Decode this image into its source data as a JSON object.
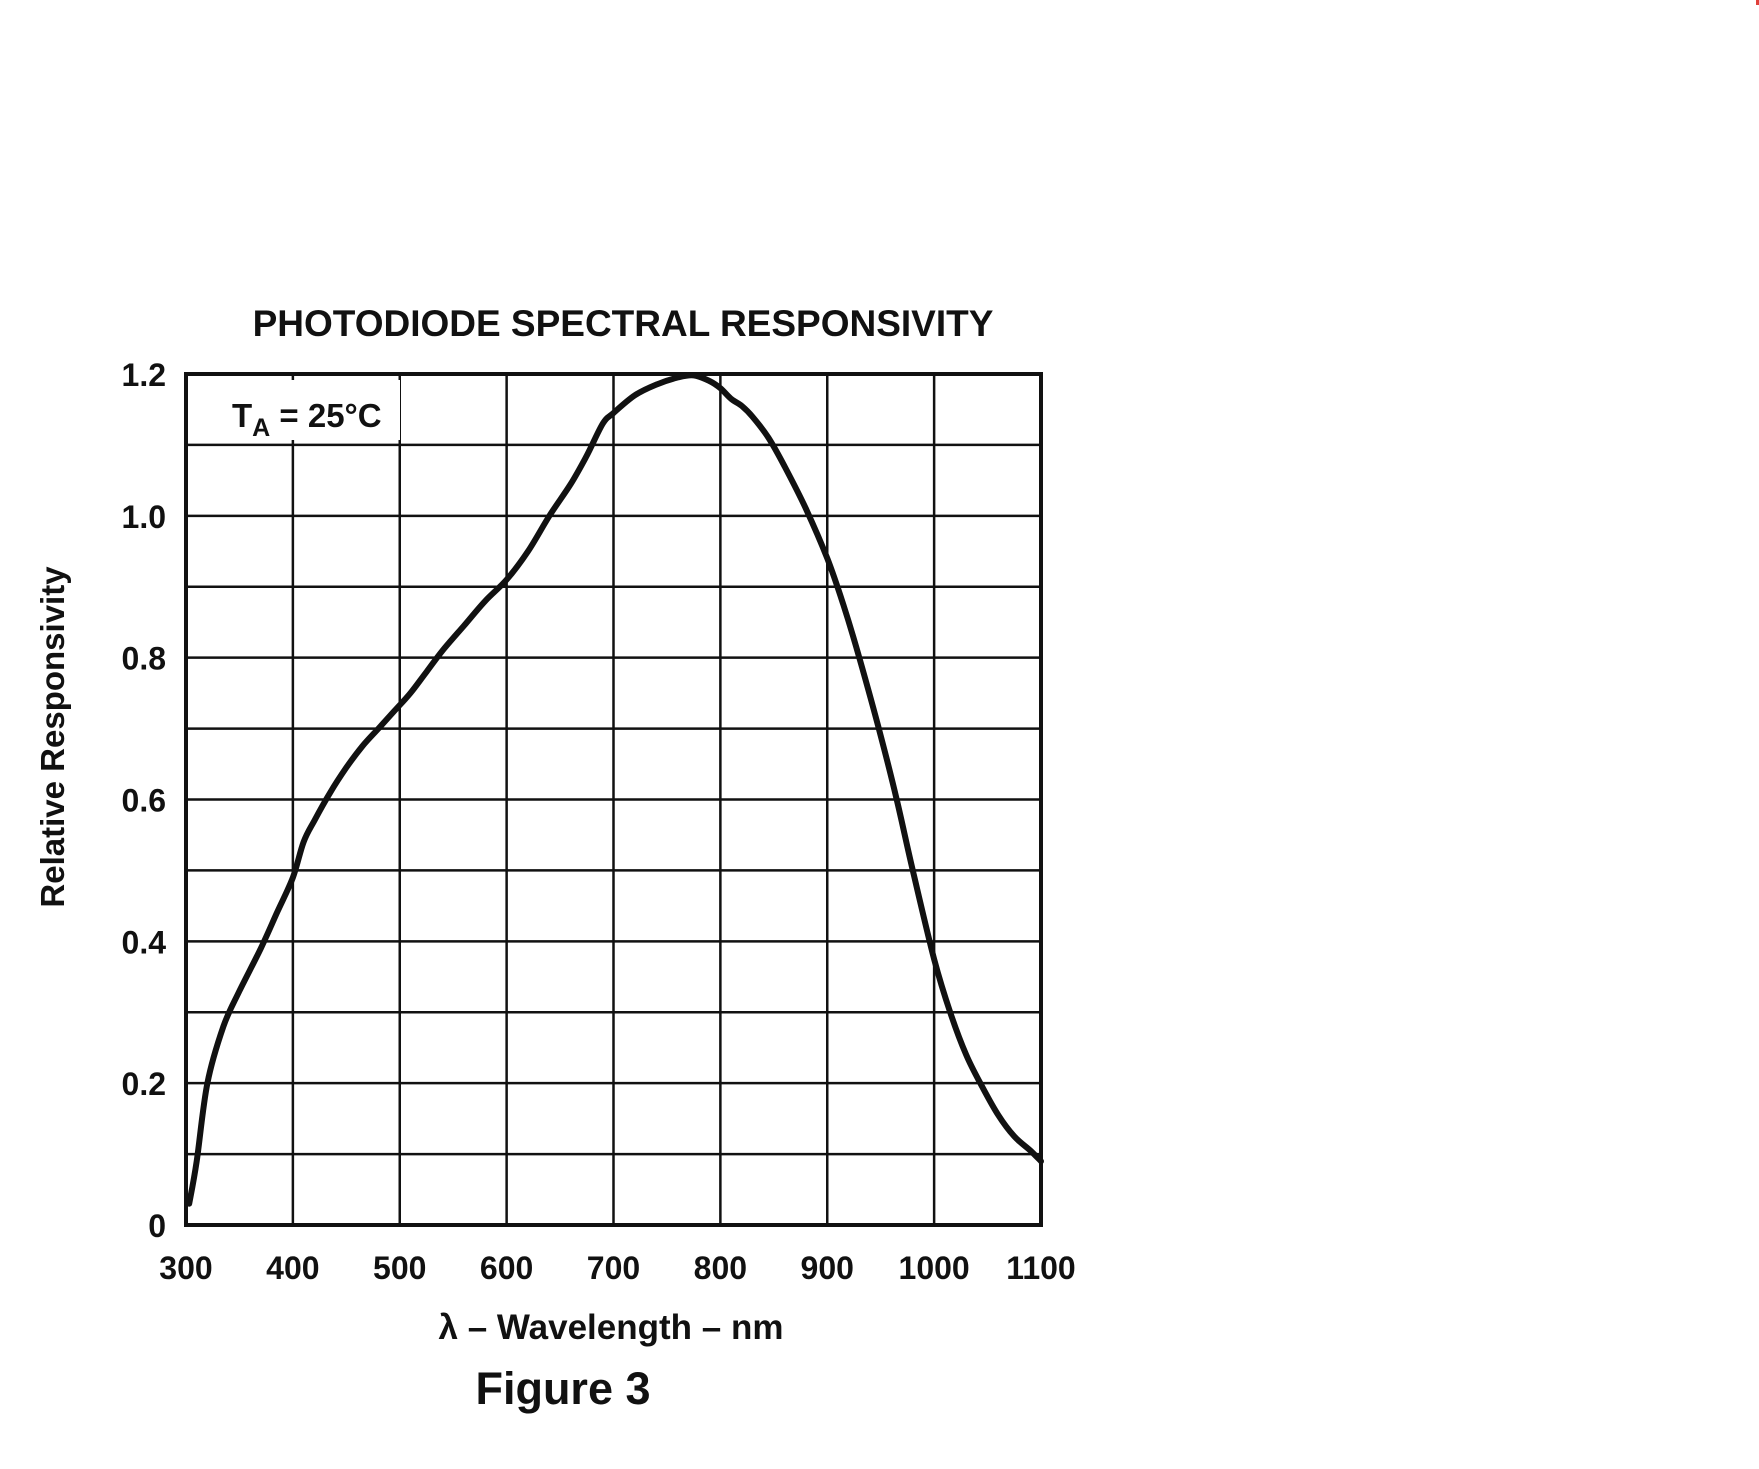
{
  "chart_data": {
    "type": "line",
    "title": "PHOTODIODE SPECTRAL RESPONSIVITY",
    "xlabel": "λ – Wavelength – nm",
    "ylabel": "Relative Responsivity",
    "xlim": [
      300,
      1100
    ],
    "ylim": [
      0,
      1.2
    ],
    "x_ticks": [
      300,
      400,
      500,
      600,
      700,
      800,
      900,
      1000,
      1100
    ],
    "x_tick_labels": [
      "300",
      "400",
      "500",
      "600",
      "700",
      "800",
      "900",
      "1000",
      "1100"
    ],
    "y_ticks": [
      0,
      0.2,
      0.4,
      0.6,
      0.8,
      1.0,
      1.2
    ],
    "y_tick_labels": [
      "0",
      "0.2",
      "0.4",
      "0.6",
      "0.8",
      "1.0",
      "1.2"
    ],
    "grid": true,
    "annotation": {
      "main": "T",
      "subscript": "A",
      "rest": " = 25°C"
    },
    "caption": "Figure 3",
    "line_color": "#111111",
    "series": [
      {
        "x": [
          303,
          310,
          320,
          335,
          350,
          370,
          385,
          400,
          410,
          420,
          435,
          450,
          465,
          480,
          495,
          510,
          525,
          540,
          560,
          580,
          600,
          620,
          640,
          660,
          675,
          690,
          700,
          720,
          740,
          760,
          775,
          790,
          800,
          810,
          820,
          830,
          845,
          860,
          880,
          900,
          915,
          930,
          950,
          965,
          980,
          1000,
          1015,
          1030,
          1045,
          1060,
          1075,
          1090,
          1100
        ],
        "y": [
          0.03,
          0.09,
          0.2,
          0.28,
          0.33,
          0.39,
          0.44,
          0.49,
          0.54,
          0.57,
          0.61,
          0.645,
          0.675,
          0.7,
          0.725,
          0.75,
          0.78,
          0.81,
          0.845,
          0.88,
          0.91,
          0.95,
          1.0,
          1.045,
          1.085,
          1.13,
          1.145,
          1.17,
          1.185,
          1.195,
          1.198,
          1.19,
          1.18,
          1.165,
          1.155,
          1.14,
          1.11,
          1.07,
          1.01,
          0.94,
          0.875,
          0.8,
          0.69,
          0.6,
          0.5,
          0.375,
          0.3,
          0.24,
          0.195,
          0.155,
          0.125,
          0.105,
          0.09
        ]
      }
    ]
  }
}
